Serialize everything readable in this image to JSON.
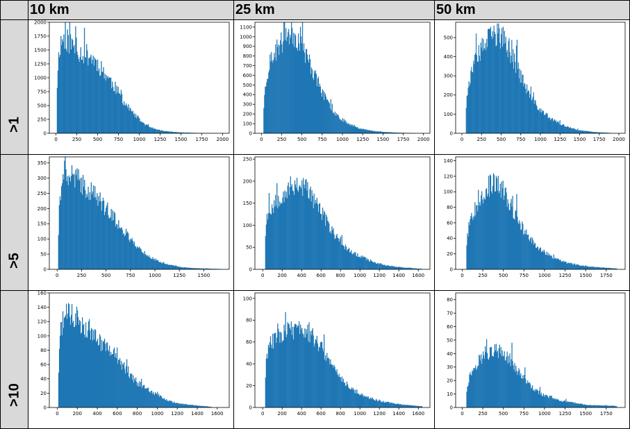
{
  "columns": [
    "10 km",
    "25 km",
    "50 km"
  ],
  "rows": [
    ">1",
    ">5",
    ">10"
  ],
  "colors": {
    "bar": "#1f77b4",
    "header_bg": "#d9d9d9"
  },
  "chart_data": [
    {
      "type": "bar",
      "row": ">1",
      "column": "10 km",
      "xlim": [
        -80,
        2080
      ],
      "xticks": [
        0,
        250,
        500,
        750,
        1000,
        1250,
        1500,
        1750,
        2000
      ],
      "ylim": [
        0,
        2000
      ],
      "yticks": [
        0,
        250,
        500,
        750,
        1000,
        1250,
        1500,
        1750,
        2000
      ],
      "x_range": [
        10,
        1950
      ],
      "seed": 11,
      "profile": [
        [
          10,
          0
        ],
        [
          15,
          1000
        ],
        [
          40,
          1550
        ],
        [
          80,
          1700
        ],
        [
          120,
          1700
        ],
        [
          200,
          1580
        ],
        [
          300,
          1450
        ],
        [
          400,
          1400
        ],
        [
          500,
          1250
        ],
        [
          600,
          1050
        ],
        [
          700,
          850
        ],
        [
          800,
          600
        ],
        [
          900,
          400
        ],
        [
          1000,
          240
        ],
        [
          1100,
          130
        ],
        [
          1200,
          70
        ],
        [
          1300,
          40
        ],
        [
          1400,
          25
        ],
        [
          1500,
          15
        ],
        [
          1700,
          6
        ],
        [
          1950,
          2
        ]
      ]
    },
    {
      "type": "bar",
      "row": ">1",
      "column": "25 km",
      "xlim": [
        -80,
        2080
      ],
      "xticks": [
        0,
        250,
        500,
        750,
        1000,
        1250,
        1500,
        1750,
        2000
      ],
      "ylim": [
        0,
        1150
      ],
      "yticks": [
        0,
        100,
        200,
        300,
        400,
        500,
        600,
        700,
        800,
        900,
        1000,
        1100
      ],
      "x_range": [
        25,
        1900
      ],
      "seed": 23,
      "profile": [
        [
          25,
          0
        ],
        [
          30,
          330
        ],
        [
          60,
          560
        ],
        [
          100,
          720
        ],
        [
          200,
          880
        ],
        [
          300,
          1000
        ],
        [
          350,
          1050
        ],
        [
          400,
          1030
        ],
        [
          450,
          980
        ],
        [
          500,
          900
        ],
        [
          600,
          720
        ],
        [
          700,
          520
        ],
        [
          800,
          340
        ],
        [
          900,
          220
        ],
        [
          1000,
          140
        ],
        [
          1100,
          90
        ],
        [
          1200,
          55
        ],
        [
          1300,
          35
        ],
        [
          1400,
          22
        ],
        [
          1500,
          14
        ],
        [
          1700,
          6
        ],
        [
          1900,
          2
        ]
      ]
    },
    {
      "type": "bar",
      "row": ">1",
      "column": "50 km",
      "xlim": [
        -80,
        2080
      ],
      "xticks": [
        0,
        250,
        500,
        750,
        1000,
        1250,
        1500,
        1750,
        2000
      ],
      "ylim": [
        0,
        580
      ],
      "yticks": [
        0,
        100,
        200,
        300,
        400,
        500
      ],
      "x_range": [
        50,
        1900
      ],
      "seed": 37,
      "profile": [
        [
          50,
          0
        ],
        [
          55,
          170
        ],
        [
          100,
          290
        ],
        [
          200,
          400
        ],
        [
          300,
          470
        ],
        [
          400,
          510
        ],
        [
          450,
          520
        ],
        [
          500,
          505
        ],
        [
          600,
          440
        ],
        [
          700,
          350
        ],
        [
          800,
          250
        ],
        [
          900,
          170
        ],
        [
          1000,
          120
        ],
        [
          1100,
          85
        ],
        [
          1200,
          60
        ],
        [
          1300,
          40
        ],
        [
          1400,
          25
        ],
        [
          1500,
          15
        ],
        [
          1700,
          6
        ],
        [
          1900,
          2
        ]
      ]
    },
    {
      "type": "bar",
      "row": ">5",
      "column": "10 km",
      "xlim": [
        -80,
        1760
      ],
      "xticks": [
        0,
        250,
        500,
        750,
        1000,
        1250,
        1500
      ],
      "ylim": [
        0,
        370
      ],
      "yticks": [
        0,
        50,
        100,
        150,
        200,
        250,
        300,
        350
      ],
      "x_range": [
        10,
        1680
      ],
      "seed": 41,
      "profile": [
        [
          10,
          0
        ],
        [
          15,
          160
        ],
        [
          40,
          280
        ],
        [
          80,
          320
        ],
        [
          150,
          310
        ],
        [
          250,
          280
        ],
        [
          350,
          260
        ],
        [
          450,
          220
        ],
        [
          550,
          180
        ],
        [
          650,
          140
        ],
        [
          750,
          100
        ],
        [
          850,
          65
        ],
        [
          950,
          40
        ],
        [
          1050,
          25
        ],
        [
          1150,
          15
        ],
        [
          1250,
          8
        ],
        [
          1400,
          4
        ],
        [
          1680,
          1
        ]
      ]
    },
    {
      "type": "bar",
      "row": ">5",
      "column": "25 km",
      "xlim": [
        -80,
        1720
      ],
      "xticks": [
        0,
        200,
        400,
        600,
        800,
        1000,
        1200,
        1400,
        1600
      ],
      "ylim": [
        0,
        255
      ],
      "yticks": [
        0,
        50,
        100,
        150,
        200,
        250
      ],
      "x_range": [
        25,
        1640
      ],
      "seed": 53,
      "profile": [
        [
          25,
          0
        ],
        [
          30,
          110
        ],
        [
          60,
          130
        ],
        [
          150,
          160
        ],
        [
          250,
          180
        ],
        [
          350,
          195
        ],
        [
          450,
          185
        ],
        [
          550,
          150
        ],
        [
          650,
          110
        ],
        [
          750,
          75
        ],
        [
          850,
          50
        ],
        [
          950,
          35
        ],
        [
          1050,
          25
        ],
        [
          1150,
          15
        ],
        [
          1300,
          8
        ],
        [
          1450,
          4
        ],
        [
          1640,
          1
        ]
      ]
    },
    {
      "type": "bar",
      "row": ">5",
      "column": "50 km",
      "xlim": [
        -80,
        1980
      ],
      "xticks": [
        0,
        250,
        500,
        750,
        1000,
        1250,
        1500,
        1750
      ],
      "ylim": [
        0,
        145
      ],
      "yticks": [
        0,
        20,
        40,
        60,
        80,
        100,
        120,
        140
      ],
      "x_range": [
        50,
        1880
      ],
      "seed": 67,
      "profile": [
        [
          50,
          0
        ],
        [
          55,
          40
        ],
        [
          100,
          65
        ],
        [
          200,
          90
        ],
        [
          300,
          105
        ],
        [
          400,
          112
        ],
        [
          500,
          100
        ],
        [
          600,
          80
        ],
        [
          700,
          60
        ],
        [
          800,
          42
        ],
        [
          900,
          30
        ],
        [
          1000,
          22
        ],
        [
          1100,
          15
        ],
        [
          1200,
          11
        ],
        [
          1300,
          8
        ],
        [
          1500,
          4
        ],
        [
          1880,
          1
        ]
      ]
    },
    {
      "type": "bar",
      "row": ">10",
      "column": "10 km",
      "xlim": [
        -80,
        1720
      ],
      "xticks": [
        0,
        200,
        400,
        600,
        800,
        1000,
        1200,
        1400,
        1600
      ],
      "ylim": [
        0,
        160
      ],
      "yticks": [
        0,
        20,
        40,
        60,
        80,
        100,
        120,
        140,
        160
      ],
      "x_range": [
        10,
        1540
      ],
      "seed": 71,
      "profile": [
        [
          10,
          0
        ],
        [
          15,
          75
        ],
        [
          40,
          115
        ],
        [
          100,
          130
        ],
        [
          200,
          125
        ],
        [
          300,
          110
        ],
        [
          400,
          95
        ],
        [
          500,
          85
        ],
        [
          600,
          70
        ],
        [
          700,
          50
        ],
        [
          800,
          35
        ],
        [
          900,
          25
        ],
        [
          1000,
          18
        ],
        [
          1100,
          10
        ],
        [
          1200,
          6
        ],
        [
          1300,
          4
        ],
        [
          1540,
          1
        ]
      ]
    },
    {
      "type": "bar",
      "row": ">10",
      "column": "25 km",
      "xlim": [
        -80,
        1720
      ],
      "xticks": [
        0,
        200,
        400,
        600,
        800,
        1000,
        1200,
        1400,
        1600
      ],
      "ylim": [
        0,
        105
      ],
      "yticks": [
        0,
        20,
        40,
        60,
        80,
        100
      ],
      "x_range": [
        25,
        1640
      ],
      "seed": 83,
      "profile": [
        [
          25,
          0
        ],
        [
          30,
          40
        ],
        [
          60,
          55
        ],
        [
          150,
          68
        ],
        [
          250,
          70
        ],
        [
          350,
          72
        ],
        [
          450,
          72
        ],
        [
          550,
          62
        ],
        [
          650,
          48
        ],
        [
          750,
          35
        ],
        [
          850,
          22
        ],
        [
          950,
          15
        ],
        [
          1050,
          10
        ],
        [
          1200,
          6
        ],
        [
          1400,
          3
        ],
        [
          1640,
          1
        ]
      ]
    },
    {
      "type": "bar",
      "row": ">10",
      "column": "50 km",
      "xlim": [
        -80,
        1980
      ],
      "xticks": [
        0,
        250,
        500,
        750,
        1000,
        1250,
        1500,
        1750
      ],
      "ylim": [
        0,
        85
      ],
      "yticks": [
        0,
        10,
        20,
        30,
        40,
        50,
        60,
        70,
        80
      ],
      "x_range": [
        50,
        1880
      ],
      "seed": 97,
      "profile": [
        [
          50,
          0
        ],
        [
          55,
          15
        ],
        [
          100,
          25
        ],
        [
          200,
          35
        ],
        [
          300,
          40
        ],
        [
          400,
          42
        ],
        [
          500,
          40
        ],
        [
          600,
          34
        ],
        [
          700,
          25
        ],
        [
          800,
          18
        ],
        [
          900,
          12
        ],
        [
          1000,
          9
        ],
        [
          1100,
          7
        ],
        [
          1200,
          5
        ],
        [
          1300,
          4
        ],
        [
          1500,
          2
        ],
        [
          1880,
          1
        ]
      ]
    }
  ]
}
